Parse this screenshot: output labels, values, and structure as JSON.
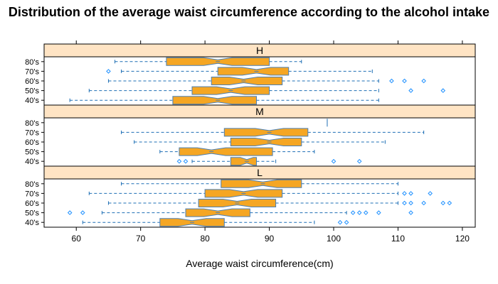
{
  "chart_data": {
    "type": "boxplot",
    "title": "Distribution of the average waist circumference according to the alcohol intake",
    "xlabel": "Average waist circumference(cm)",
    "xlim": [
      55,
      122
    ],
    "x_ticks": [
      60,
      70,
      80,
      90,
      100,
      110,
      120
    ],
    "x_tick_labels": [
      "60",
      "70",
      "80",
      "90",
      "100",
      "110",
      "120"
    ],
    "grid": false,
    "box_fill": "#f5a623",
    "box_border": "#4a7fb5",
    "whisker_color": "#1e6fb5",
    "outlier_color": "#1e90ff",
    "strip_fill": "#ffe4c4",
    "panels": [
      {
        "label": "H",
        "groups": [
          {
            "category": "80's",
            "min": 66,
            "q1": 74,
            "median": 82,
            "q3": 90,
            "max": 95,
            "outliers": []
          },
          {
            "category": "70's",
            "min": 67,
            "q1": 82,
            "median": 88,
            "q3": 93,
            "max": 106,
            "outliers": [
              65
            ]
          },
          {
            "category": "60's",
            "min": 65,
            "q1": 81,
            "median": 86,
            "q3": 92,
            "max": 107,
            "outliers": [
              109,
              111,
              114
            ]
          },
          {
            "category": "50's",
            "min": 62,
            "q1": 78,
            "median": 84,
            "q3": 90,
            "max": 107,
            "outliers": [
              112,
              117
            ]
          },
          {
            "category": "40's",
            "min": 59,
            "q1": 75,
            "median": 82,
            "q3": 88,
            "max": 107,
            "outliers": []
          }
        ]
      },
      {
        "label": "M",
        "groups": [
          {
            "category": "80's",
            "min": 99,
            "q1": 99,
            "median": 99,
            "q3": 99,
            "max": 99,
            "outliers": []
          },
          {
            "category": "70's",
            "min": 67,
            "q1": 83,
            "median": 90,
            "q3": 96,
            "max": 114,
            "outliers": []
          },
          {
            "category": "60's",
            "min": 69,
            "q1": 84,
            "median": 90,
            "q3": 95,
            "max": 108,
            "outliers": []
          },
          {
            "category": "50's",
            "min": 73,
            "q1": 76,
            "median": 81,
            "q3": 90.5,
            "max": 97,
            "outliers": []
          },
          {
            "category": "40's",
            "min": 78,
            "q1": 84,
            "median": 86.5,
            "q3": 88,
            "max": 91,
            "outliers": [
              76,
              77,
              100,
              104
            ]
          }
        ]
      },
      {
        "label": "L",
        "groups": [
          {
            "category": "80's",
            "min": 67,
            "q1": 82.5,
            "median": 89,
            "q3": 95,
            "max": 110,
            "outliers": []
          },
          {
            "category": "70's",
            "min": 62,
            "q1": 80,
            "median": 86,
            "q3": 92,
            "max": 110,
            "outliers": [
              111,
              112,
              115
            ]
          },
          {
            "category": "60's",
            "min": 65,
            "q1": 79,
            "median": 85,
            "q3": 91,
            "max": 110,
            "outliers": [
              111,
              112,
              114,
              117,
              118
            ]
          },
          {
            "category": "50's",
            "min": 64,
            "q1": 77,
            "median": 82,
            "q3": 87,
            "max": 102,
            "outliers": [
              59,
              61,
              103,
              104,
              105,
              107,
              112
            ]
          },
          {
            "category": "40's",
            "min": 61,
            "q1": 73,
            "median": 78,
            "q3": 83,
            "max": 97,
            "outliers": [
              101,
              102
            ]
          }
        ]
      }
    ]
  }
}
